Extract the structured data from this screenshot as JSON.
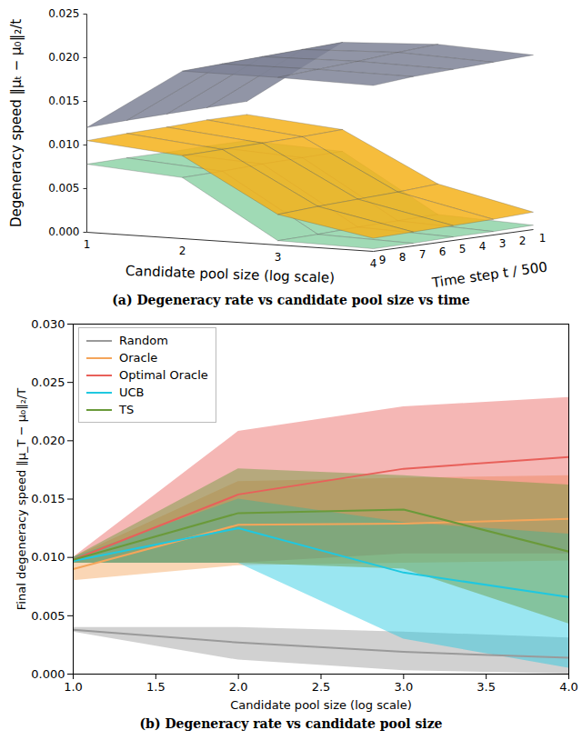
{
  "chart_data": [
    {
      "type": "surface",
      "title": "(a) Degeneracy rate vs candidate pool size vs time",
      "xlabel": "Candidate pool size (log scale)",
      "ylabel": "Time step t / 500",
      "zlabel": "Degeneracy speed ‖μₜ − μ₀‖₂/t",
      "x": [
        1,
        2,
        3,
        4
      ],
      "y": [
        1,
        3,
        5,
        7,
        9
      ],
      "xlim": [
        1,
        4
      ],
      "xticks": [
        1,
        2,
        3,
        4
      ],
      "ylim": [
        1,
        9
      ],
      "yticks": [
        1,
        2,
        3,
        4,
        5,
        6,
        7,
        8,
        9
      ],
      "zlim": [
        0,
        0.025
      ],
      "zticks": [
        {
          "value": 0,
          "label": "0.000"
        },
        {
          "value": 0.005,
          "label": "0.005"
        },
        {
          "value": 0.01,
          "label": "0.010"
        },
        {
          "value": 0.015,
          "label": "0.015"
        },
        {
          "value": 0.02,
          "label": "0.020"
        },
        {
          "value": 0.025,
          "label": "0.025"
        }
      ],
      "series": [
        {
          "color": "#8fd3a8",
          "values": [
            [
              0.008,
              0.0075,
              0.001,
              0.0005
            ],
            [
              0.008,
              0.0074,
              0.0009,
              0.0004
            ],
            [
              0.0079,
              0.0073,
              0.0008,
              0.0004
            ],
            [
              0.0079,
              0.0071,
              0.0006,
              0.0003
            ],
            [
              0.0078,
              0.007,
              0.0005,
              0.0003
            ]
          ]
        },
        {
          "color": "#f4b21a",
          "values": [
            [
              0.011,
              0.01,
              0.0045,
              0.002
            ],
            [
              0.011,
              0.0098,
              0.0042,
              0.0018
            ],
            [
              0.0108,
              0.0097,
              0.004,
              0.0017
            ],
            [
              0.0107,
              0.0096,
              0.0038,
              0.0016
            ],
            [
              0.0105,
              0.0095,
              0.0035,
              0.0015
            ]
          ]
        },
        {
          "color": "#7e8396",
          "values": [
            [
              0.0125,
              0.02,
              0.0205,
              0.02
            ],
            [
              0.0124,
              0.0198,
              0.0202,
              0.0198
            ],
            [
              0.0123,
              0.0196,
              0.0198,
              0.0196
            ],
            [
              0.0122,
              0.0194,
              0.0195,
              0.0194
            ],
            [
              0.012,
              0.0192,
              0.0192,
              0.019
            ]
          ]
        }
      ]
    },
    {
      "type": "line",
      "title": "(b) Degeneracy rate vs candidate pool size",
      "xlabel": "Candidate pool size (log scale)",
      "ylabel": "Final degeneracy speed ‖μ_T − μ₀‖₂/T",
      "x": [
        1,
        2,
        3,
        4
      ],
      "xlim": [
        1,
        4
      ],
      "xticks": [
        {
          "value": 1,
          "label": "1.0"
        },
        {
          "value": 1.5,
          "label": "1.5"
        },
        {
          "value": 2,
          "label": "2.0"
        },
        {
          "value": 2.5,
          "label": "2.5"
        },
        {
          "value": 3,
          "label": "3.0"
        },
        {
          "value": 3.5,
          "label": "3.5"
        },
        {
          "value": 4,
          "label": "4.0"
        }
      ],
      "ylim": [
        0,
        0.03
      ],
      "yticks": [
        {
          "value": 0,
          "label": "0.000"
        },
        {
          "value": 0.005,
          "label": "0.005"
        },
        {
          "value": 0.01,
          "label": "0.010"
        },
        {
          "value": 0.015,
          "label": "0.015"
        },
        {
          "value": 0.02,
          "label": "0.020"
        },
        {
          "value": 0.025,
          "label": "0.025"
        },
        {
          "value": 0.03,
          "label": "0.030"
        }
      ],
      "legend": "upper left",
      "series": [
        {
          "name": "Random",
          "color": "#9a9a9a",
          "values": [
            0.0038,
            0.0027,
            0.0019,
            0.0014
          ],
          "lower": [
            0.0036,
            0.0012,
            0.0003,
            0.0
          ],
          "upper": [
            0.004,
            0.004,
            0.0036,
            0.0031
          ]
        },
        {
          "name": "Oracle",
          "color": "#f5a55a",
          "values": [
            0.009,
            0.0128,
            0.0129,
            0.0133
          ],
          "lower": [
            0.008,
            0.0093,
            0.0095,
            0.0097
          ],
          "upper": [
            0.01,
            0.0165,
            0.0168,
            0.017
          ]
        },
        {
          "name": "Optimal Oracle",
          "color": "#e8605a",
          "values": [
            0.0098,
            0.0154,
            0.0176,
            0.0186
          ],
          "lower": [
            0.0095,
            0.0095,
            0.0103,
            0.0103
          ],
          "upper": [
            0.01,
            0.0208,
            0.0229,
            0.0237
          ]
        },
        {
          "name": "UCB",
          "color": "#1fc8e0",
          "values": [
            0.0097,
            0.0125,
            0.0087,
            0.0066
          ],
          "lower": [
            0.0095,
            0.0095,
            0.003,
            0.0005
          ],
          "upper": [
            0.01,
            0.015,
            0.013,
            0.012
          ]
        },
        {
          "name": "TS",
          "color": "#6a9a3a",
          "values": [
            0.0098,
            0.0138,
            0.0141,
            0.0105
          ],
          "lower": [
            0.0095,
            0.0095,
            0.009,
            0.0043
          ],
          "upper": [
            0.01,
            0.0176,
            0.017,
            0.0162
          ]
        }
      ]
    }
  ]
}
